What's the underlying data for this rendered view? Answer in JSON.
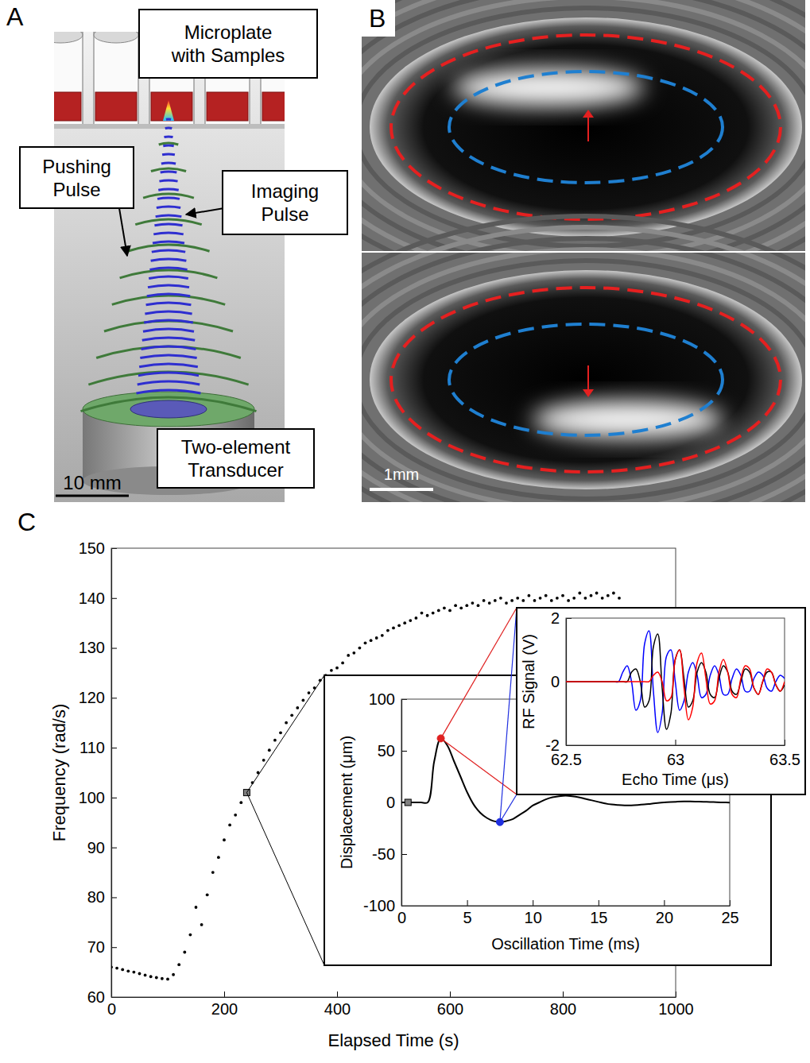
{
  "panels": {
    "A": {
      "label": "A",
      "microplate_label": "Microplate with Samples",
      "pushing_label": "Pushing Pulse",
      "imaging_label": "Imaging Pulse",
      "transducer_label": "Two-element Transducer",
      "scale_bar": "10 mm"
    },
    "B": {
      "label": "B",
      "scale_bar": "1mm"
    },
    "C": {
      "label": "C"
    }
  },
  "chart_data": [
    {
      "type": "scatter",
      "x_label": "Elapsed Time (s)",
      "y_label": "Frequency (rad/s)",
      "xlim": [
        0,
        1000
      ],
      "xticks": [
        0,
        200,
        400,
        600,
        800,
        1000
      ],
      "ylim": [
        60,
        150
      ],
      "yticks": [
        60,
        70,
        80,
        90,
        100,
        110,
        120,
        130,
        140,
        150
      ],
      "series": [
        {
          "color": "#000000",
          "marker": "dot",
          "x": [
            0,
            10,
            20,
            30,
            40,
            50,
            60,
            70,
            80,
            90,
            100,
            110,
            120,
            130,
            140,
            150,
            160,
            170,
            180,
            190,
            200,
            210,
            220,
            230,
            240,
            250,
            260,
            270,
            280,
            290,
            300,
            310,
            320,
            330,
            340,
            350,
            360,
            370,
            380,
            390,
            400,
            410,
            420,
            430,
            440,
            450,
            460,
            470,
            480,
            490,
            500,
            510,
            520,
            530,
            540,
            550,
            560,
            570,
            580,
            590,
            600,
            610,
            620,
            630,
            640,
            650,
            660,
            670,
            680,
            690,
            700,
            710,
            720,
            730,
            740,
            750,
            760,
            770,
            780,
            790,
            800,
            810,
            820,
            830,
            840,
            850,
            860,
            870,
            880,
            890,
            900
          ],
          "values": [
            66.0,
            65.8,
            65.5,
            65.2,
            65.0,
            64.7,
            64.4,
            64.1,
            63.9,
            63.7,
            63.6,
            64.5,
            66.5,
            69.0,
            72.5,
            78.0,
            74.5,
            80.5,
            85.0,
            88.0,
            91.5,
            94.5,
            96.5,
            99.0,
            101.0,
            103.0,
            105.0,
            107.5,
            109.5,
            111.5,
            113.0,
            115.0,
            116.5,
            118.0,
            119.5,
            121.0,
            122.0,
            123.5,
            124.5,
            125.5,
            126.0,
            127.0,
            128.5,
            129.0,
            130.0,
            131.0,
            131.5,
            132.0,
            132.5,
            133.5,
            134.0,
            134.5,
            135.0,
            135.5,
            136.0,
            137.0,
            136.5,
            137.0,
            137.5,
            138.0,
            137.5,
            138.5,
            138.0,
            138.5,
            139.0,
            138.5,
            139.5,
            139.0,
            139.5,
            140.0,
            139.0,
            139.5,
            140.0,
            139.5,
            140.5,
            139.5,
            140.0,
            140.5,
            139.5,
            140.0,
            140.5,
            139.5,
            140.0,
            141.0,
            140.0,
            140.5,
            141.0,
            140.0,
            140.5,
            141.0,
            140.0
          ]
        },
        {
          "color": "#808080",
          "marker": "square",
          "x": [
            240
          ],
          "values": [
            101.0
          ]
        }
      ]
    },
    {
      "type": "line",
      "x_label": "Oscillation Time (ms)",
      "y_label": "Displacement (μm)",
      "xlim": [
        0,
        25
      ],
      "xticks": [
        0,
        5,
        10,
        15,
        20,
        25
      ],
      "ylim": [
        -100,
        100
      ],
      "yticks": [
        -100,
        -50,
        0,
        50,
        100
      ],
      "series": [
        {
          "type": "line",
          "color": "#000000",
          "x": [
            0,
            0.5,
            1,
            1.5,
            2,
            2.5,
            3,
            3.5,
            4,
            4.5,
            5,
            5.5,
            6,
            6.5,
            7,
            7.5,
            8,
            8.5,
            9,
            9.5,
            10,
            10.5,
            11,
            11.5,
            12,
            12.5,
            13,
            13.5,
            14,
            14.5,
            15,
            15.5,
            16,
            16.5,
            17,
            17.5,
            18,
            18.5,
            19,
            19.5,
            20,
            20.5,
            21,
            21.5,
            22,
            22.5,
            23,
            23.5,
            24,
            24.5,
            25
          ],
          "values": [
            0,
            0,
            0,
            0,
            0,
            40,
            62,
            55,
            40,
            25,
            10,
            -2,
            -10,
            -15,
            -18,
            -19,
            -18,
            -16,
            -12,
            -8,
            -3,
            0,
            3,
            5,
            6,
            6.5,
            6,
            5,
            3.5,
            2,
            0.5,
            -1,
            -2,
            -2.5,
            -2.8,
            -2.8,
            -2.5,
            -2,
            -1.3,
            -0.6,
            0,
            0.4,
            0.7,
            0.9,
            0.9,
            0.8,
            0.6,
            0.4,
            0.2,
            0,
            -0.1
          ]
        },
        {
          "type": "scatter",
          "color": "#808080",
          "marker": "square",
          "x": [
            0.5
          ],
          "values": [
            0
          ]
        },
        {
          "type": "scatter",
          "color": "#e02020",
          "marker": "circle",
          "x": [
            3
          ],
          "values": [
            62
          ]
        },
        {
          "type": "scatter",
          "color": "#2030e0",
          "marker": "circle",
          "x": [
            7.5
          ],
          "values": [
            -19
          ]
        }
      ]
    },
    {
      "type": "line",
      "x_label": "Echo Time (μs)",
      "y_label": "RF Signal (V)",
      "xlim": [
        62.5,
        63.5
      ],
      "xticks": [
        62.5,
        63,
        63.5
      ],
      "ylim": [
        -2,
        2
      ],
      "yticks": [
        -2,
        0,
        2
      ],
      "x": [
        62.5,
        62.52,
        62.54,
        62.56,
        62.58,
        62.6,
        62.62,
        62.64,
        62.66,
        62.68,
        62.7,
        62.72,
        62.74,
        62.76,
        62.78,
        62.8,
        62.82,
        62.84,
        62.86,
        62.88,
        62.9,
        62.92,
        62.94,
        62.96,
        62.98,
        63.0,
        63.02,
        63.04,
        63.06,
        63.08,
        63.1,
        63.12,
        63.14,
        63.16,
        63.18,
        63.2,
        63.22,
        63.24,
        63.26,
        63.28,
        63.3,
        63.32,
        63.34,
        63.36,
        63.38,
        63.4,
        63.42,
        63.44,
        63.46,
        63.48,
        63.5
      ],
      "series": [
        {
          "color": "#0000ff",
          "values": [
            0,
            0,
            0,
            0,
            0,
            0,
            0,
            0,
            0,
            0,
            0,
            0,
            0,
            0.3,
            0.5,
            0,
            -0.9,
            -0.6,
            1.2,
            1.6,
            -0.3,
            -1.6,
            -1.0,
            0.8,
            1.0,
            0,
            -0.9,
            -0.6,
            0.3,
            0.6,
            0.2,
            -0.5,
            -0.4,
            0.2,
            0.5,
            0.2,
            -0.4,
            -0.4,
            0.1,
            0.4,
            0.2,
            -0.3,
            -0.3,
            0.1,
            0.3,
            0.2,
            -0.2,
            -0.3,
            0,
            0.2,
            0.1
          ]
        },
        {
          "color": "#000000",
          "values": [
            0,
            0,
            0,
            0,
            0,
            0,
            0,
            0,
            0,
            0,
            0,
            0,
            0,
            0,
            0,
            0.3,
            0.4,
            0,
            -0.8,
            -0.6,
            1.1,
            1.5,
            -0.2,
            -1.5,
            -1.0,
            0.7,
            1.0,
            0.1,
            -0.8,
            -0.6,
            0.3,
            0.6,
            0.3,
            -0.4,
            -0.5,
            0.1,
            0.5,
            0.3,
            -0.3,
            -0.4,
            0,
            0.4,
            0.3,
            -0.2,
            -0.4,
            0,
            0.3,
            0.3,
            -0.1,
            -0.3,
            -0.1
          ]
        },
        {
          "color": "#ff0000",
          "values": [
            0,
            0,
            0,
            0,
            0,
            0,
            0,
            0,
            0,
            0,
            0,
            0,
            0,
            0,
            0,
            0,
            0,
            0,
            0,
            0,
            0.2,
            0.3,
            0,
            -0.6,
            -0.5,
            0.7,
            1.0,
            -0.2,
            -1.2,
            -0.8,
            0.6,
            0.9,
            0.1,
            -0.7,
            -0.6,
            0.3,
            0.7,
            0.3,
            -0.4,
            -0.5,
            0.1,
            0.5,
            0.4,
            -0.2,
            -0.4,
            0,
            0.4,
            0.3,
            -0.1,
            -0.3,
            0
          ]
        }
      ]
    }
  ]
}
